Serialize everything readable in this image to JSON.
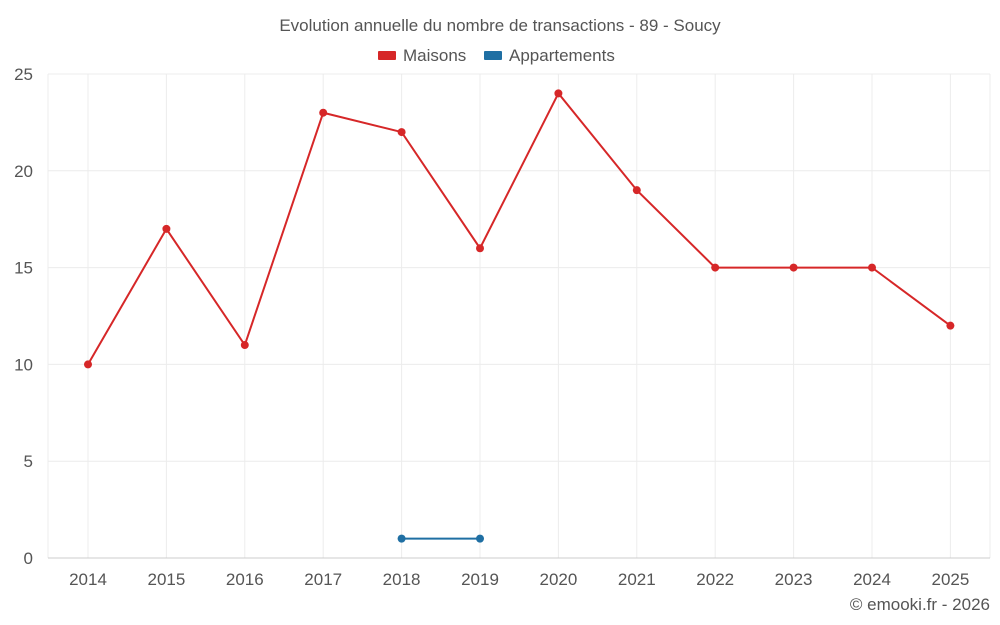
{
  "chart_data": {
    "type": "line",
    "title": "Evolution annuelle du nombre de transactions - 89 - Soucy",
    "categories": [
      "2014",
      "2015",
      "2016",
      "2017",
      "2018",
      "2019",
      "2020",
      "2021",
      "2022",
      "2023",
      "2024",
      "2025"
    ],
    "ylim": [
      0,
      25
    ],
    "yticks": [
      0,
      5,
      10,
      15,
      20,
      25
    ],
    "grid": true,
    "legend_position": "top-center",
    "series": [
      {
        "name": "Maisons",
        "color": "#d62728",
        "values": [
          10,
          17,
          11,
          23,
          22,
          16,
          24,
          19,
          15,
          15,
          15,
          12
        ]
      },
      {
        "name": "Appartements",
        "color": "#1f6fa3",
        "values": [
          null,
          null,
          null,
          null,
          1,
          1,
          null,
          null,
          null,
          null,
          null,
          null
        ]
      }
    ]
  },
  "credit": "© emooki.fr - 2026"
}
